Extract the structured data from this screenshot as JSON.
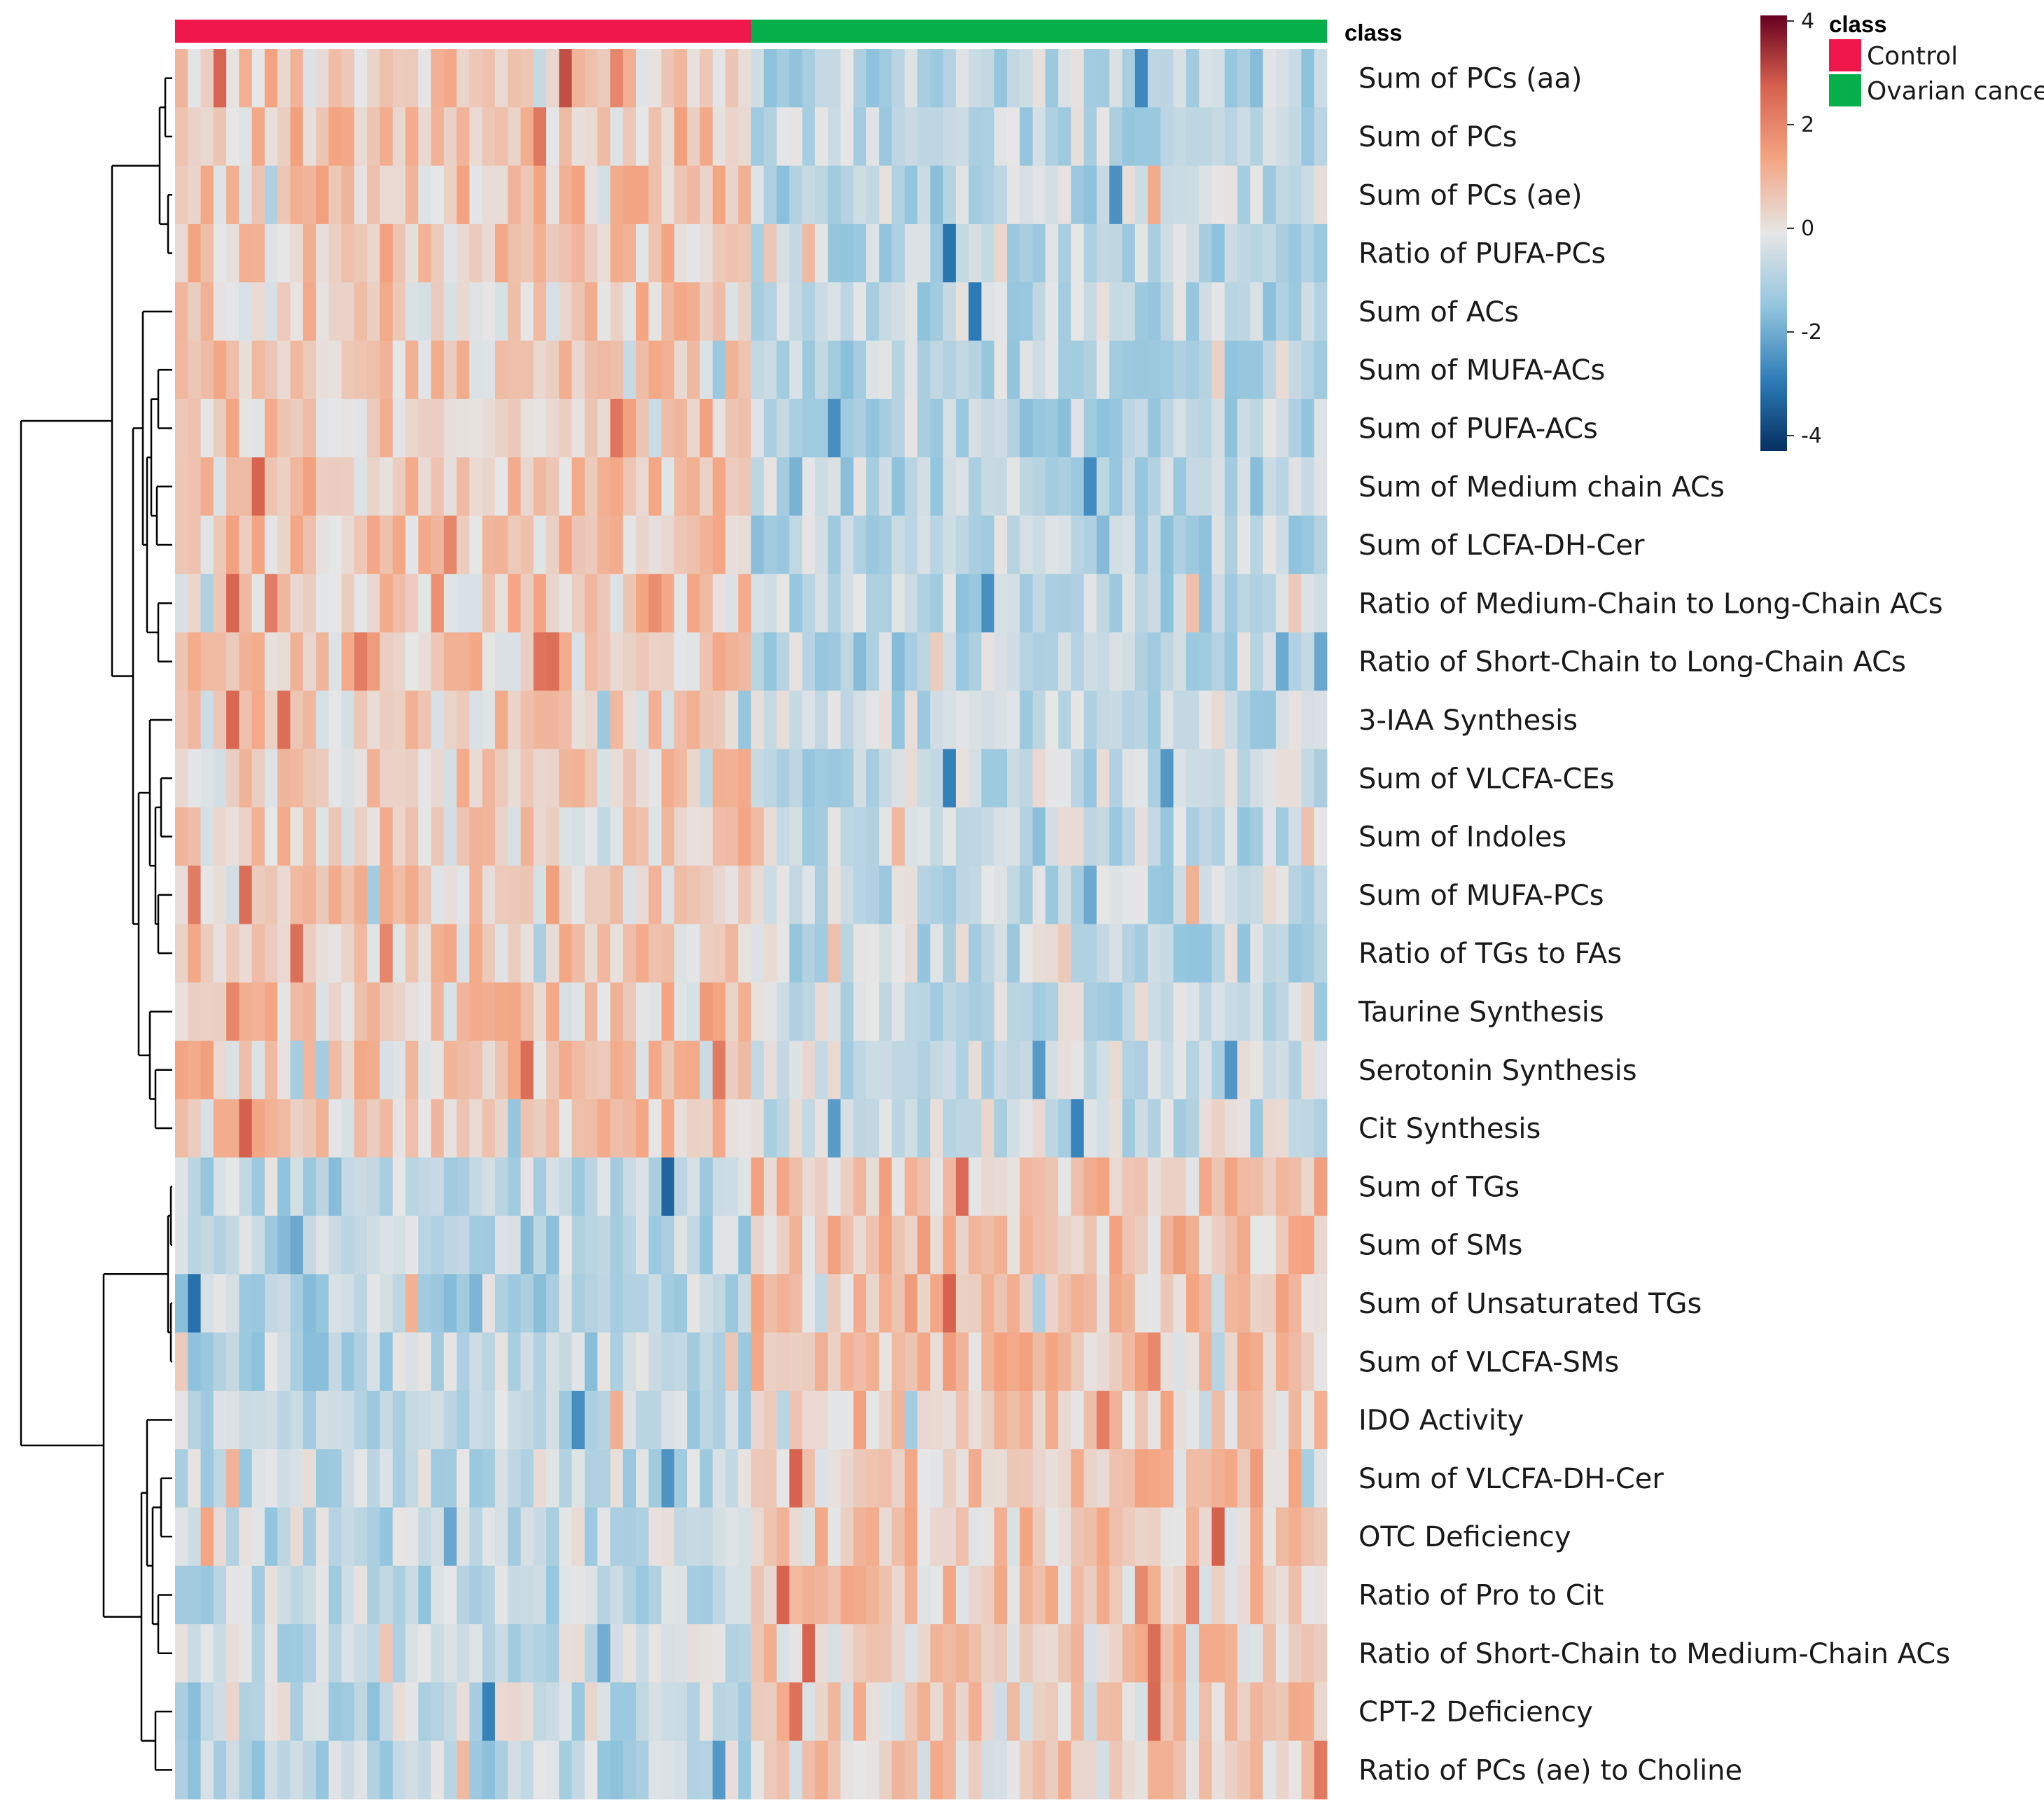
{
  "chart_data": {
    "type": "heatmap",
    "title": "",
    "class_annotation": {
      "title": "class",
      "groups": [
        {
          "name": "Control",
          "color": "#f0174d",
          "count": 45
        },
        {
          "name": "Ovarian cancer",
          "color": "#05b04a",
          "count": 45
        }
      ]
    },
    "rows": [
      "Sum of PCs (aa)",
      "Sum of PCs",
      "Sum of PCs (ae)",
      "Ratio of PUFA-PCs",
      "Sum of ACs",
      "Sum of MUFA-ACs",
      "Sum of PUFA-ACs",
      "Sum of Medium chain ACs",
      "Sum of LCFA-DH-Cer",
      "Ratio of Medium-Chain to Long-Chain ACs",
      "Ratio of Short-Chain to Long-Chain ACs",
      "3-IAA Synthesis",
      "Sum of VLCFA-CEs",
      "Sum of Indoles",
      "Sum of MUFA-PCs",
      "Ratio of TGs to FAs",
      "Taurine Synthesis",
      "Serotonin Synthesis",
      "Cit Synthesis",
      "Sum of TGs",
      "Sum of SMs",
      "Sum of Unsaturated TGs",
      "Sum of VLCFA-SMs",
      "IDO Activity",
      "Sum of VLCFA-DH-Cer",
      "OTC Deficiency",
      "Ratio of Pro to Cit",
      "Ratio of Short-Chain to Medium-Chain ACs",
      "CPT-2 Deficiency",
      "Ratio of PCs (ae) to Choline"
    ],
    "row_group_means": [
      {
        "control": 0.7,
        "cancer": -0.7
      },
      {
        "control": 0.7,
        "cancer": -0.7
      },
      {
        "control": 0.7,
        "cancer": -0.7
      },
      {
        "control": 0.7,
        "cancer": -0.7
      },
      {
        "control": 0.5,
        "cancer": -0.7
      },
      {
        "control": 0.6,
        "cancer": -0.8
      },
      {
        "control": 0.7,
        "cancer": -0.8
      },
      {
        "control": 0.7,
        "cancer": -0.8
      },
      {
        "control": 0.7,
        "cancer": -0.8
      },
      {
        "control": 0.6,
        "cancer": -0.8
      },
      {
        "control": 0.6,
        "cancer": -0.8
      },
      {
        "control": 0.5,
        "cancer": -0.6
      },
      {
        "control": 0.5,
        "cancer": -0.6
      },
      {
        "control": 0.5,
        "cancer": -0.6
      },
      {
        "control": 0.5,
        "cancer": -0.6
      },
      {
        "control": 0.6,
        "cancer": -0.6
      },
      {
        "control": 0.6,
        "cancer": -0.5
      },
      {
        "control": 0.6,
        "cancer": -0.5
      },
      {
        "control": 0.6,
        "cancer": -0.5
      },
      {
        "control": -0.8,
        "cancer": 0.8
      },
      {
        "control": -0.8,
        "cancer": 0.8
      },
      {
        "control": -0.8,
        "cancer": 0.8
      },
      {
        "control": -0.8,
        "cancer": 0.8
      },
      {
        "control": -0.7,
        "cancer": 0.7
      },
      {
        "control": -0.6,
        "cancer": 0.6
      },
      {
        "control": -0.6,
        "cancer": 0.6
      },
      {
        "control": -0.6,
        "cancer": 0.6
      },
      {
        "control": -0.6,
        "cancer": 0.6
      },
      {
        "control": -0.5,
        "cancer": 0.5
      },
      {
        "control": -0.7,
        "cancer": 0.5
      }
    ],
    "color_scale": {
      "min": -4,
      "max": 4,
      "ticks": [
        4,
        2,
        0,
        -2,
        -4
      ],
      "colors": [
        "#053061",
        "#2c7bb6",
        "#92c5de",
        "#e6e6e6",
        "#f4a582",
        "#d6604d",
        "#67001f"
      ]
    },
    "legend_title": "class"
  }
}
